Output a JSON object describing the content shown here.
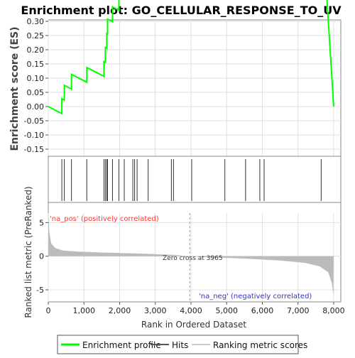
{
  "chart_data": {
    "type": "line",
    "title": "Enrichment plot: GO_CELLULAR_RESPONSE_TO_UV",
    "xlabel": "Rank in Ordered Dataset",
    "ylabel_top": "Enrichment score (ES)",
    "ylabel_bottom": "Ranked list metric (PreRanked)",
    "xlim": [
      0,
      8200
    ],
    "es_ylim": [
      -0.175,
      0.305
    ],
    "metric_ylim": [
      -6.8,
      8.0
    ],
    "x_ticks": [
      0,
      1000,
      2000,
      3000,
      4000,
      5000,
      6000,
      7000,
      8000
    ],
    "x_tick_labels": [
      "0",
      "1,000",
      "2,000",
      "3,000",
      "4,000",
      "5,000",
      "6,000",
      "7,000",
      "8,000"
    ],
    "es_ticks": [
      -0.15,
      -0.1,
      -0.05,
      0.0,
      0.05,
      0.1,
      0.15,
      0.2,
      0.25,
      0.3
    ],
    "es_tick_labels": [
      "-0.15",
      "-0.10",
      "-0.05",
      "0.00",
      "0.05",
      "0.10",
      "0.15",
      "0.20",
      "0.25",
      "0.30"
    ],
    "metric_ticks": [
      -5,
      0,
      5
    ],
    "metric_tick_labels": [
      "-5",
      "0",
      "5"
    ],
    "hits": [
      380,
      450,
      650,
      1080,
      1560,
      1600,
      1640,
      1660,
      1800,
      1980,
      2130,
      2370,
      2420,
      2490,
      2800,
      3450,
      3510,
      4020,
      4950,
      5530,
      5930,
      6050,
      7650
    ],
    "es_start": 0.0,
    "es_end": 0.0,
    "es_step": 0.052,
    "es_slope_per_1000": -0.0652,
    "metric_curve": [
      [
        0,
        7.2
      ],
      [
        25,
        3.8
      ],
      [
        80,
        1.9
      ],
      [
        200,
        1.2
      ],
      [
        400,
        0.85
      ],
      [
        800,
        0.7
      ],
      [
        1500,
        0.55
      ],
      [
        2500,
        0.4
      ],
      [
        3500,
        0.2
      ],
      [
        3965,
        0.0
      ],
      [
        4500,
        -0.15
      ],
      [
        5500,
        -0.35
      ],
      [
        6500,
        -0.65
      ],
      [
        7200,
        -1.0
      ],
      [
        7600,
        -1.5
      ],
      [
        7850,
        -2.4
      ],
      [
        7950,
        -4.0
      ],
      [
        7990,
        -5.8
      ]
    ],
    "zero_cross_label": "Zero cross at 3965",
    "zero_cross": 3965,
    "pos_label": "'na_pos' (positively correlated)",
    "neg_label": "'na_neg' (negatively correlated)",
    "heat_segments": [
      {
        "from": 0,
        "to": 1300,
        "color": "#f25858"
      },
      {
        "from": 1300,
        "to": 2200,
        "color": "#f27078"
      },
      {
        "from": 2200,
        "to": 3000,
        "color": "#f49090"
      },
      {
        "from": 3000,
        "to": 4000,
        "color": "#f6c0e8"
      },
      {
        "from": 4000,
        "to": 5050,
        "color": "#d8d8f8"
      },
      {
        "from": 5050,
        "to": 5900,
        "color": "#c4c4f4"
      },
      {
        "from": 5900,
        "to": 6450,
        "color": "#9090f0"
      },
      {
        "from": 6450,
        "to": 7650,
        "color": "#6868e8"
      },
      {
        "from": 7650,
        "to": 7960,
        "color": "#3a00d8"
      }
    ],
    "legend": [
      {
        "name": "Enrichment profile",
        "color": "#00ff00"
      },
      {
        "name": "Hits",
        "color": "#555555"
      },
      {
        "name": "Ranking metric scores",
        "color": "#cccccc"
      }
    ],
    "colors": {
      "es_line": "#00ff00",
      "hit": "#333333",
      "metric_fill": "#bbbbbb",
      "pos_text": "#ff3333",
      "neg_text": "#3333cc",
      "grid": "#e0e0e0"
    }
  }
}
